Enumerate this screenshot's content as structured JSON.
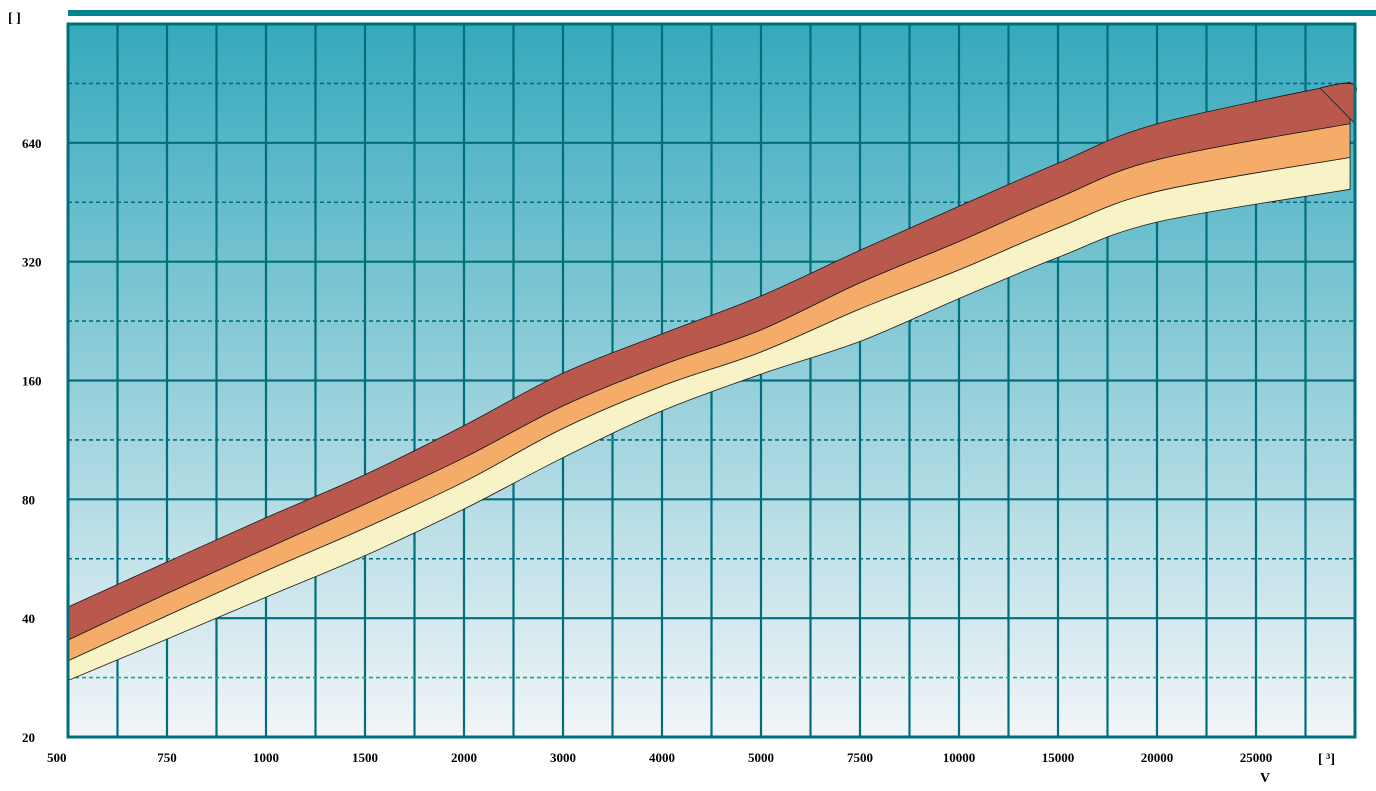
{
  "chart_data": {
    "type": "area",
    "x_scale": "categorical",
    "y_scale": "log2",
    "categories": [
      "500",
      "750",
      "1000",
      "1500",
      "2000",
      "3000",
      "4000",
      "5000",
      "7500",
      "10000",
      "15000",
      "20000",
      "25000"
    ],
    "y_ticks": [
      "20",
      "40",
      "80",
      "160",
      "320",
      "640"
    ],
    "ylim": [
      20,
      1280
    ],
    "xlabel": "V",
    "x_unit_bracket": "[ ³]",
    "y_unit_bracket": "[ ]",
    "grid": true,
    "band_boundaries": [
      {
        "color": "#f7f3c6",
        "values": [
          27.8,
          35.4,
          45.2,
          57.6,
          75.6,
          102,
          134,
          166,
          201,
          258,
          328,
          403,
          488
        ]
      },
      {
        "color": "#f4ac68",
        "values": [
          31.2,
          40.6,
          52.7,
          67.7,
          88.6,
          121,
          155,
          189,
          243,
          305,
          390,
          482,
          588
        ]
      },
      {
        "color": "#b9584d",
        "values": [
          35.2,
          46.2,
          60.0,
          77.8,
          102,
          138,
          175,
          215,
          283,
          360,
          464,
          580,
          716
        ]
      },
      {
        "color": "#b9584d",
        "values": [
          42.7,
          55.5,
          71.9,
          92.4,
          123,
          167,
          210,
          262,
          342,
          442,
          568,
          715,
          912
        ]
      }
    ],
    "colors": {
      "band_low": "#f7f3c6",
      "band_mid": "#f4ac68",
      "band_high": "#b9584d",
      "grid": "#006f7b",
      "background_top": "#35a9bd",
      "background_bottom": "#f2f5f8",
      "minor_grid_low": "#14a87a"
    }
  }
}
